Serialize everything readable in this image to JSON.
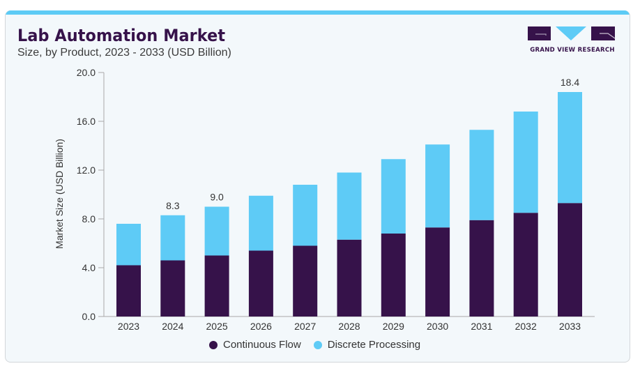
{
  "header": {
    "title": "Lab Automation Market",
    "subtitle": "Size, by Product, 2023 - 2033 (USD Billion)"
  },
  "logo": {
    "text": "GRAND VIEW RESEARCH",
    "icon": "grand-view-research-logo"
  },
  "colors": {
    "primary": "#36124a",
    "accent": "#5ecbf6",
    "card_background": "#f3f8fb"
  },
  "chart_data": {
    "type": "bar",
    "stacked": true,
    "title": "Lab Automation Market",
    "subtitle": "Size, by Product, 2023 - 2033 (USD Billion)",
    "xlabel": "",
    "ylabel": "Market Size (USD Billion)",
    "ylim": [
      0,
      20
    ],
    "yticks": [
      0,
      4,
      8,
      12,
      16,
      20
    ],
    "ytick_labels": [
      "0.0",
      "4.0",
      "8.0",
      "12.0",
      "16.0",
      "20.0"
    ],
    "grid": false,
    "legend_position": "bottom-center",
    "categories": [
      "2023",
      "2024",
      "2025",
      "2026",
      "2027",
      "2028",
      "2029",
      "2030",
      "2031",
      "2032",
      "2033"
    ],
    "series": [
      {
        "name": "Continuous Flow",
        "color": "#36124a",
        "values": [
          4.2,
          4.6,
          5.0,
          5.4,
          5.8,
          6.3,
          6.8,
          7.3,
          7.9,
          8.5,
          9.3
        ]
      },
      {
        "name": "Discrete Processing",
        "color": "#5ecbf6",
        "values": [
          3.4,
          3.7,
          4.0,
          4.5,
          5.0,
          5.5,
          6.1,
          6.8,
          7.4,
          8.3,
          9.1
        ]
      }
    ],
    "data_labels": [
      {
        "category": "2024",
        "text": "8.3"
      },
      {
        "category": "2025",
        "text": "9.0"
      },
      {
        "category": "2033",
        "text": "18.4"
      }
    ]
  }
}
